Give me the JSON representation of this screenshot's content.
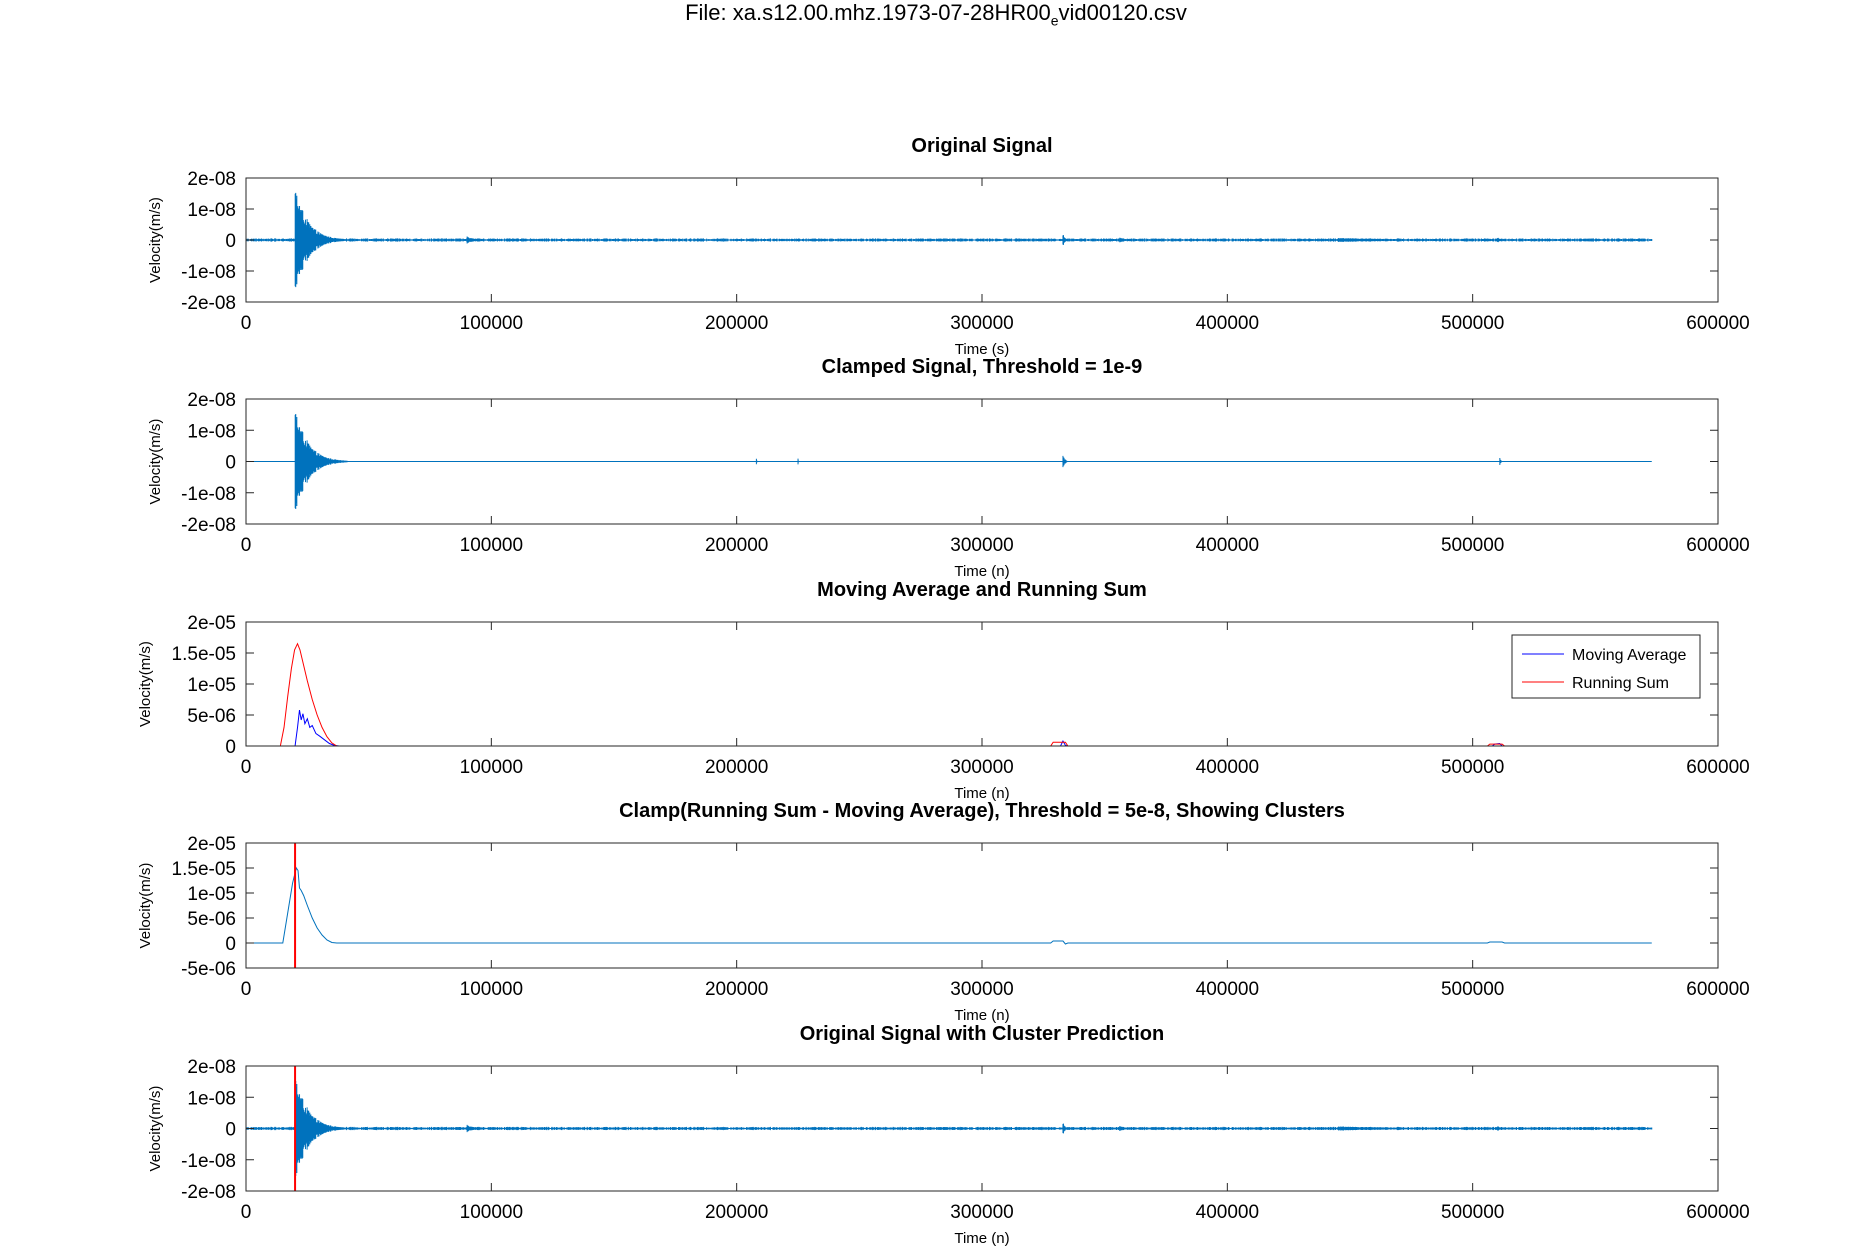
{
  "figure": {
    "title": "File: xa.s12.00.mhz.1973-07-28HR00",
    "title_sub": "e",
    "title_end": "vid00120.csv"
  },
  "chart_data": [
    {
      "type": "line",
      "title": "Original Signal",
      "xlabel": "Time (s)",
      "ylabel": "Velocity(m/s)",
      "xlim": [
        0,
        600000
      ],
      "ylim": [
        -2e-08,
        2e-08
      ],
      "xticks": [
        0,
        100000,
        200000,
        300000,
        400000,
        500000,
        600000
      ],
      "xtick_labels": [
        "0",
        "100000",
        "200000",
        "300000",
        "400000",
        "500000",
        "600000"
      ],
      "yticks": [
        -2e-08,
        -1e-08,
        0,
        1e-08,
        2e-08
      ],
      "ytick_labels": [
        "-2e-08",
        "-1e-08",
        "0",
        "1e-08",
        "2e-08"
      ],
      "series": [
        {
          "color": "#0072bd",
          "kind": "seismic",
          "x_end": 573000,
          "bursts": [
            {
              "start": 20000,
              "peak": 1.8e-08,
              "trough": -1.75e-08,
              "decay": 5000,
              "length": 30000
            },
            {
              "start": 90000,
              "peak": 1.2e-09,
              "trough": -1.2e-09,
              "decay": 3000,
              "length": 8000
            },
            {
              "start": 333000,
              "peak": 2.2e-09,
              "trough": -2e-09,
              "decay": 800,
              "length": 2500
            },
            {
              "start": 356000,
              "peak": 8e-10,
              "trough": -8e-10,
              "decay": 2500,
              "length": 6000
            },
            {
              "start": 445000,
              "peak": 7e-10,
              "trough": -7e-10,
              "decay": 30000,
              "length": 85000
            },
            {
              "start": 510000,
              "peak": 1.2e-09,
              "trough": -1.2e-09,
              "decay": 1000,
              "length": 3000
            }
          ],
          "noise": 4e-10
        }
      ]
    },
    {
      "type": "line",
      "title": "Clamped Signal, Threshold = 1e-9",
      "xlabel": "Time (n)",
      "ylabel": "Velocity(m/s)",
      "xlim": [
        0,
        600000
      ],
      "ylim": [
        -2e-08,
        2e-08
      ],
      "xticks": [
        0,
        100000,
        200000,
        300000,
        400000,
        500000,
        600000
      ],
      "xtick_labels": [
        "0",
        "100000",
        "200000",
        "300000",
        "400000",
        "500000",
        "600000"
      ],
      "yticks": [
        -2e-08,
        -1e-08,
        0,
        1e-08,
        2e-08
      ],
      "ytick_labels": [
        "-2e-08",
        "-1e-08",
        "0",
        "1e-08",
        "2e-08"
      ],
      "series": [
        {
          "color": "#0072bd",
          "kind": "seismic",
          "x_end": 573000,
          "bursts": [
            {
              "start": 20000,
              "peak": 1.8e-08,
              "trough": -1.75e-08,
              "decay": 5000,
              "length": 22000
            },
            {
              "start": 208000,
              "peak": 1.2e-09,
              "trough": 0,
              "decay": 200,
              "length": 500
            },
            {
              "start": 225000,
              "peak": 0,
              "trough": -1e-09,
              "decay": 200,
              "length": 500
            },
            {
              "start": 333000,
              "peak": 2.2e-09,
              "trough": -2e-09,
              "decay": 800,
              "length": 2500
            },
            {
              "start": 511000,
              "peak": 1.6e-09,
              "trough": -1.2e-09,
              "decay": 400,
              "length": 1200
            }
          ],
          "noise": 0
        }
      ]
    },
    {
      "type": "line",
      "title": "Moving Average and Running Sum",
      "xlabel": "Time (n)",
      "ylabel": "Velocity(m/s)",
      "xlim": [
        0,
        600000
      ],
      "ylim": [
        0,
        2e-05
      ],
      "xticks": [
        0,
        100000,
        200000,
        300000,
        400000,
        500000,
        600000
      ],
      "xtick_labels": [
        "0",
        "100000",
        "200000",
        "300000",
        "400000",
        "500000",
        "600000"
      ],
      "yticks": [
        0,
        5e-06,
        1e-05,
        1.5e-05,
        2e-05
      ],
      "ytick_labels": [
        "0",
        "5e-06",
        "1e-05",
        "1.5e-05",
        "2e-05"
      ],
      "legend_position": "top-right",
      "series": [
        {
          "name": "Moving Average",
          "color": "#0000ff",
          "points": [
            [
              0,
              0
            ],
            [
              20000,
              0
            ],
            [
              21000,
              3e-06
            ],
            [
              21800,
              5.8e-06
            ],
            [
              22500,
              4.2e-06
            ],
            [
              23200,
              5.2e-06
            ],
            [
              24000,
              3.6e-06
            ],
            [
              25000,
              4.4e-06
            ],
            [
              26000,
              3e-06
            ],
            [
              27000,
              3.3e-06
            ],
            [
              28500,
              2e-06
            ],
            [
              30000,
              1.6e-06
            ],
            [
              32000,
              1e-06
            ],
            [
              34000,
              4e-07
            ],
            [
              36000,
              1e-07
            ],
            [
              38000,
              0
            ],
            [
              332000,
              0
            ],
            [
              333000,
              8e-07
            ],
            [
              334000,
              1e-07
            ],
            [
              335000,
              0
            ],
            [
              508000,
              0
            ],
            [
              509000,
              3e-07
            ],
            [
              511000,
              4e-07
            ],
            [
              512000,
              0
            ],
            [
              573000,
              0
            ]
          ]
        },
        {
          "name": "Running Sum",
          "color": "#ff0000",
          "points": [
            [
              0,
              0
            ],
            [
              14000,
              0
            ],
            [
              15500,
              3e-06
            ],
            [
              17000,
              8e-06
            ],
            [
              18500,
              1.25e-05
            ],
            [
              19800,
              1.55e-05
            ],
            [
              21000,
              1.65e-05
            ],
            [
              22000,
              1.55e-05
            ],
            [
              23500,
              1.3e-05
            ],
            [
              25000,
              1.05e-05
            ],
            [
              27000,
              7.5e-06
            ],
            [
              29000,
              5e-06
            ],
            [
              31000,
              3e-06
            ],
            [
              33000,
              1.5e-06
            ],
            [
              35000,
              5e-07
            ],
            [
              37000,
              0
            ],
            [
              328000,
              0
            ],
            [
              329000,
              6e-07
            ],
            [
              334000,
              6e-07
            ],
            [
              335000,
              0
            ],
            [
              506000,
              0
            ],
            [
              507000,
              3e-07
            ],
            [
              512000,
              3e-07
            ],
            [
              513000,
              0
            ],
            [
              573000,
              0
            ]
          ]
        }
      ]
    },
    {
      "type": "line",
      "title": "Clamp(Running Sum - Moving Average), Threshold = 5e-8, Showing Clusters",
      "xlabel": "Time (n)",
      "ylabel": "Velocity(m/s)",
      "xlim": [
        0,
        600000
      ],
      "ylim": [
        -5e-06,
        2e-05
      ],
      "xticks": [
        0,
        100000,
        200000,
        300000,
        400000,
        500000,
        600000
      ],
      "xtick_labels": [
        "0",
        "100000",
        "200000",
        "300000",
        "400000",
        "500000",
        "600000"
      ],
      "yticks": [
        -5e-06,
        0,
        5e-06,
        1e-05,
        1.5e-05,
        2e-05
      ],
      "ytick_labels": [
        "-5e-06",
        "0",
        "5e-06",
        "1e-05",
        "1.5e-05",
        "2e-05"
      ],
      "vlines": [
        {
          "x": 20000,
          "color": "#ff0000"
        }
      ],
      "series": [
        {
          "color": "#0072bd",
          "points": [
            [
              0,
              0
            ],
            [
              15000,
              0
            ],
            [
              16000,
              3e-06
            ],
            [
              17500,
              7.5e-06
            ],
            [
              19000,
              1.2e-05
            ],
            [
              20500,
              1.5e-05
            ],
            [
              21200,
              1.45e-05
            ],
            [
              21800,
              1.1e-05
            ],
            [
              22500,
              1.05e-05
            ],
            [
              23500,
              9.5e-06
            ],
            [
              25000,
              7.5e-06
            ],
            [
              27000,
              5e-06
            ],
            [
              29000,
              3e-06
            ],
            [
              31000,
              1.6e-06
            ],
            [
              33000,
              6e-07
            ],
            [
              35000,
              1e-07
            ],
            [
              37000,
              0
            ],
            [
              328000,
              0
            ],
            [
              329000,
              4e-07
            ],
            [
              333000,
              4e-07
            ],
            [
              334000,
              -2e-07
            ],
            [
              335000,
              0
            ],
            [
              506000,
              0
            ],
            [
              507000,
              2e-07
            ],
            [
              512000,
              2e-07
            ],
            [
              513000,
              0
            ],
            [
              573000,
              0
            ]
          ]
        }
      ]
    },
    {
      "type": "line",
      "title": "Original Signal with Cluster Prediction",
      "xlabel": "Time (n)",
      "ylabel": "Velocity(m/s)",
      "xlim": [
        0,
        600000
      ],
      "ylim": [
        -2e-08,
        2e-08
      ],
      "xticks": [
        0,
        100000,
        200000,
        300000,
        400000,
        500000,
        600000
      ],
      "xtick_labels": [
        "0",
        "100000",
        "200000",
        "300000",
        "400000",
        "500000",
        "600000"
      ],
      "yticks": [
        -2e-08,
        -1e-08,
        0,
        1e-08,
        2e-08
      ],
      "ytick_labels": [
        "-2e-08",
        "-1e-08",
        "0",
        "1e-08",
        "2e-08"
      ],
      "vlines": [
        {
          "x": 20000,
          "color": "#ff0000"
        }
      ],
      "series": [
        {
          "color": "#0072bd",
          "kind": "seismic",
          "x_end": 573000,
          "bursts": [
            {
              "start": 20000,
              "peak": 1.8e-08,
              "trough": -1.75e-08,
              "decay": 5000,
              "length": 30000
            },
            {
              "start": 90000,
              "peak": 1.2e-09,
              "trough": -1.2e-09,
              "decay": 3000,
              "length": 8000
            },
            {
              "start": 333000,
              "peak": 2.2e-09,
              "trough": -2e-09,
              "decay": 800,
              "length": 2500
            },
            {
              "start": 356000,
              "peak": 8e-10,
              "trough": -8e-10,
              "decay": 2500,
              "length": 6000
            },
            {
              "start": 445000,
              "peak": 7e-10,
              "trough": -7e-10,
              "decay": 30000,
              "length": 85000
            },
            {
              "start": 510000,
              "peak": 1.2e-09,
              "trough": -1.2e-09,
              "decay": 1000,
              "length": 3000
            }
          ],
          "noise": 4e-10
        }
      ]
    }
  ]
}
